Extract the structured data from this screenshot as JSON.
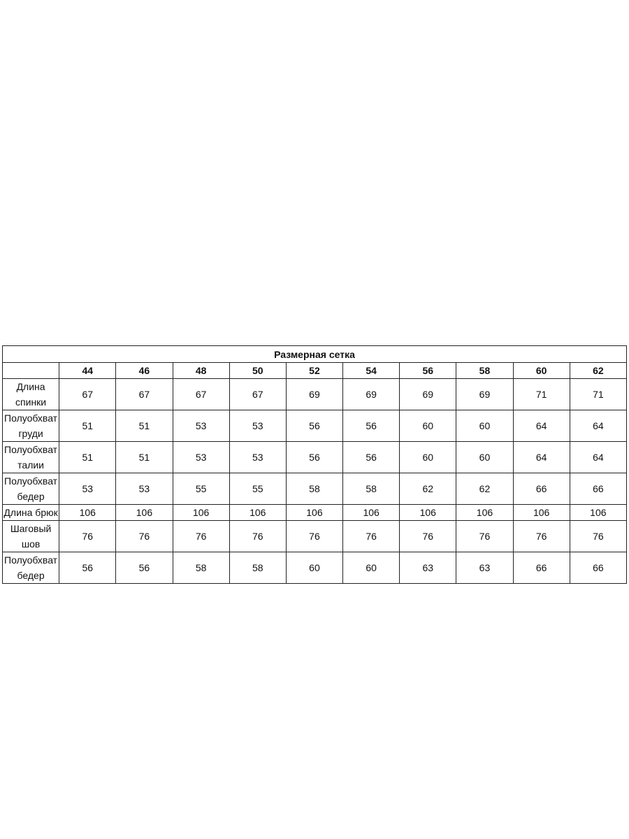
{
  "table": {
    "title": "Размерная сетка",
    "sizes": [
      "44",
      "46",
      "48",
      "50",
      "52",
      "54",
      "56",
      "58",
      "60",
      "62"
    ],
    "rows": [
      {
        "label": "Длина спинки",
        "values": [
          "67",
          "67",
          "67",
          "67",
          "69",
          "69",
          "69",
          "69",
          "71",
          "71"
        ]
      },
      {
        "label": "Полуобхват груди",
        "values": [
          "51",
          "51",
          "53",
          "53",
          "56",
          "56",
          "60",
          "60",
          "64",
          "64"
        ]
      },
      {
        "label": "Полуобхват талии",
        "values": [
          "51",
          "51",
          "53",
          "53",
          "56",
          "56",
          "60",
          "60",
          "64",
          "64"
        ]
      },
      {
        "label": "Полуобхват бедер",
        "values": [
          "53",
          "53",
          "55",
          "55",
          "58",
          "58",
          "62",
          "62",
          "66",
          "66"
        ]
      },
      {
        "label": "Длина брюк",
        "values": [
          "106",
          "106",
          "106",
          "106",
          "106",
          "106",
          "106",
          "106",
          "106",
          "106"
        ]
      },
      {
        "label": "Шаговый шов",
        "values": [
          "76",
          "76",
          "76",
          "76",
          "76",
          "76",
          "76",
          "76",
          "76",
          "76"
        ]
      },
      {
        "label": "Полуобхват бедер",
        "values": [
          "56",
          "56",
          "58",
          "58",
          "60",
          "60",
          "63",
          "63",
          "66",
          "66"
        ]
      }
    ]
  }
}
